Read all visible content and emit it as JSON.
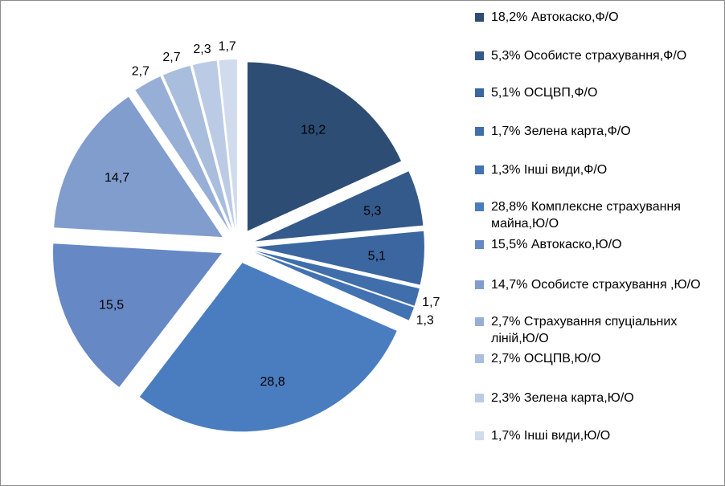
{
  "chart_data": {
    "type": "pie",
    "exploded": true,
    "legend_position": "right",
    "slices": [
      {
        "value": 18.2,
        "data_label": "18,2",
        "legend": "18,2%  Автокаско,Ф/О",
        "color": "#2d4d74"
      },
      {
        "value": 5.3,
        "data_label": "5,3",
        "legend": "5,3%  Особисте страхування,Ф/О",
        "color": "#345a8b"
      },
      {
        "value": 5.1,
        "data_label": "5,1",
        "legend": "5,1%  ОСЦВП,Ф/О",
        "color": "#3b66a0"
      },
      {
        "value": 1.7,
        "data_label": "1,7",
        "legend": "1,7%  Зелена карта,Ф/О",
        "color": "#3f6eab"
      },
      {
        "value": 1.3,
        "data_label": "1,3",
        "legend": "1,3%  Інші види,Ф/О",
        "color": "#4372b3"
      },
      {
        "value": 28.8,
        "data_label": "28,8",
        "legend": "28,8%  Комплексне страхування майна,Ю/О",
        "color": "#4a7dbf"
      },
      {
        "value": 15.5,
        "data_label": "15,5",
        "legend": "15,5%  Автокаско,Ю/О",
        "color": "#6688c5"
      },
      {
        "value": 14.7,
        "data_label": "14,7",
        "legend": "14,7%  Особисте страхування ,Ю/О",
        "color": "#809dcd"
      },
      {
        "value": 2.7,
        "data_label": "2,7",
        "legend": "2,7%  Страхування спуціальних ліній,Ю/О",
        "color": "#97afd6"
      },
      {
        "value": 2.7,
        "data_label": "2,7",
        "legend": "2,7% ОСЦПВ,Ю/О",
        "color": "#a9bddd"
      },
      {
        "value": 2.3,
        "data_label": "2,3",
        "legend": "2,3% Зелена карта,Ю/О",
        "color": "#bccbe5"
      },
      {
        "value": 1.7,
        "data_label": "1,7",
        "legend": "1,7%  Інші види,Ю/О",
        "color": "#d0dbed"
      }
    ]
  }
}
